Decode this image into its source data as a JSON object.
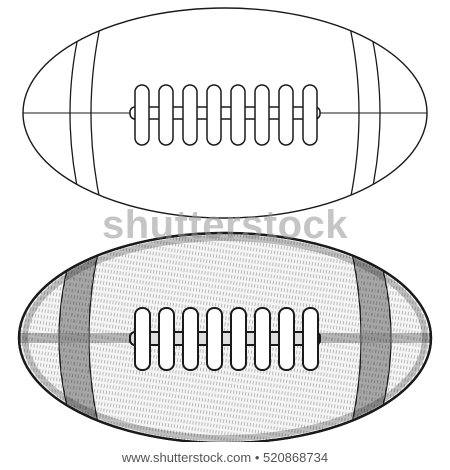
{
  "image": {
    "subject": "American football illustration",
    "colors": {
      "ink": "#1a1a1a",
      "background": "#ffffff",
      "watermark": "#969696",
      "credit_text": "#555555"
    },
    "icons": [
      "football-outline",
      "football-sketched"
    ]
  },
  "watermark": {
    "text": "shutterstock"
  },
  "credit": {
    "text": "www.shutterstock.com • 520868734"
  }
}
